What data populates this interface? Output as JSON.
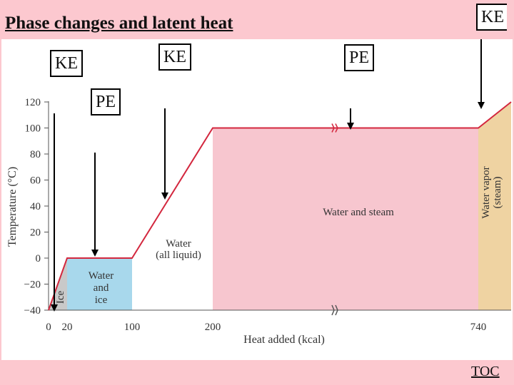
{
  "slide": {
    "title": "Phase changes and latent heat",
    "toc_label": "TOC"
  },
  "callouts": [
    {
      "name": "callout-ke-ice",
      "label": "KE"
    },
    {
      "name": "callout-pe-melting",
      "label": "PE"
    },
    {
      "name": "callout-ke-water",
      "label": "KE"
    },
    {
      "name": "callout-pe-boiling",
      "label": "PE"
    },
    {
      "name": "callout-ke-vapor",
      "label": "KE"
    }
  ],
  "colors": {
    "background": "#fcc8cf",
    "curve": "#d3273e",
    "ice_fill": "#c9c9c9",
    "water_ice_fill": "#a8d8ec",
    "water_steam_fill": "#f7c6cf",
    "vapor_fill": "#efd3a2"
  },
  "chart_data": {
    "type": "line",
    "xlabel": "Heat added (kcal)",
    "ylabel": "Temperature (°C)",
    "x_ticks": [
      0,
      20,
      100,
      200,
      740
    ],
    "y_ticks": [
      -40,
      -20,
      0,
      20,
      40,
      60,
      80,
      100,
      120
    ],
    "x_tick_labels": [
      "0",
      "20",
      "100",
      "200",
      "740"
    ],
    "y_tick_labels": [
      "−40",
      "−20",
      "0",
      "20",
      "40",
      "60",
      "80",
      "100",
      "120"
    ],
    "ylim": [
      -40,
      120
    ],
    "axis_break_between": [
      200,
      740
    ],
    "series": [
      {
        "x": [
          0,
          20,
          100,
          200,
          740,
          770
        ],
        "y": [
          -40,
          0,
          0,
          100,
          100,
          120
        ]
      }
    ],
    "regions": [
      {
        "label": "Ice",
        "x": [
          0,
          20
        ]
      },
      {
        "label": "Water and ice",
        "x": [
          20,
          100
        ]
      },
      {
        "label": "Water (all liquid)",
        "x": [
          100,
          200
        ]
      },
      {
        "label": "Water and steam",
        "x": [
          200,
          740
        ]
      },
      {
        "label": "Water vapor (steam)",
        "x": [
          740,
          770
        ]
      }
    ],
    "region_labels": {
      "ice": "Ice",
      "water_ice": [
        "Water",
        "and",
        "ice"
      ],
      "water": [
        "Water",
        "(all liquid)"
      ],
      "water_steam": "Water and steam",
      "vapor": [
        "Water vapor",
        "(steam)"
      ]
    }
  }
}
